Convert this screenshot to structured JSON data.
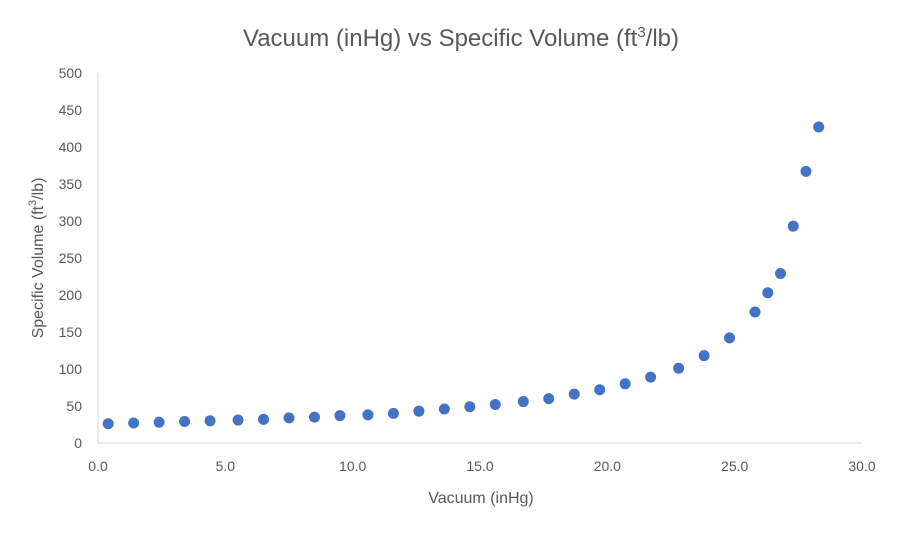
{
  "chart_data": {
    "type": "scatter",
    "title_main": "Vacuum (inHg) vs Specific Volume (ft",
    "title_sup": "3",
    "title_tail": "/lb)",
    "xlabel": "Vacuum (inHg)",
    "ylabel_main": "Specific Volume (ft",
    "ylabel_sup": "3",
    "ylabel_tail": "/lb)",
    "xlim": [
      0,
      30
    ],
    "ylim": [
      0,
      500
    ],
    "x_ticks": [
      "0.0",
      "5.0",
      "10.0",
      "15.0",
      "20.0",
      "25.0",
      "30.0"
    ],
    "y_ticks": [
      "0",
      "50",
      "100",
      "150",
      "200",
      "250",
      "300",
      "350",
      "400",
      "450",
      "500"
    ],
    "grid": false,
    "marker_color": "#4472C4",
    "x": [
      0.4,
      1.4,
      2.4,
      3.4,
      4.4,
      5.5,
      6.5,
      7.5,
      8.5,
      9.5,
      10.6,
      11.6,
      12.6,
      13.6,
      14.6,
      15.6,
      16.7,
      17.7,
      18.7,
      19.7,
      20.7,
      21.7,
      22.8,
      23.8,
      24.8,
      25.8,
      26.3,
      26.8,
      27.3,
      27.8,
      28.3
    ],
    "y": [
      26,
      27,
      28,
      29,
      30,
      31,
      32,
      34,
      35,
      37,
      38,
      40,
      43,
      46,
      49,
      52,
      56,
      60,
      66,
      72,
      80,
      89,
      101,
      118,
      142,
      177,
      203,
      229,
      293,
      367,
      427
    ]
  }
}
